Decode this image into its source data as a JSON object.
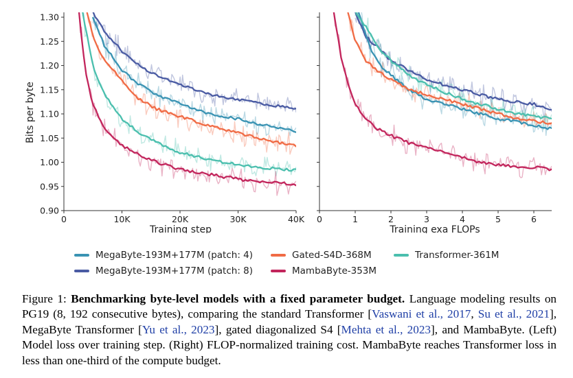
{
  "figure": {
    "ylabel": "Bits per byte",
    "yticks": [
      "0.90",
      "0.95",
      "1.00",
      "1.05",
      "1.10",
      "1.15",
      "1.20",
      "1.25",
      "1.30"
    ],
    "left_xlabel": "Training step",
    "left_xticks": [
      "0",
      "10K",
      "20K",
      "30K",
      "40K"
    ],
    "right_xlabel": "Training exa FLOPs",
    "right_xticks": [
      "0",
      "1",
      "2",
      "3",
      "4",
      "5",
      "6"
    ],
    "colors": {
      "megabyte_p4": "#3a93b3",
      "megabyte_p8": "#4a5ba3",
      "gated_s4d": "#f06b45",
      "transformer": "#4bbfae",
      "mambabyte": "#c2255c"
    },
    "legend": [
      {
        "key": "megabyte_p4",
        "label": "MegaByte-193M+177M (patch: 4)"
      },
      {
        "key": "gated_s4d",
        "label": "Gated-S4D-368M"
      },
      {
        "key": "transformer",
        "label": "Transformer-361M"
      },
      {
        "key": "megabyte_p8",
        "label": "MegaByte-193M+177M (patch: 8)"
      },
      {
        "key": "mambabyte",
        "label": "MambaByte-353M"
      }
    ]
  },
  "chart_data": [
    {
      "type": "line",
      "xlabel": "Training step",
      "ylabel": "Bits per byte",
      "xlim": [
        0,
        40000
      ],
      "ylim": [
        0.9,
        1.31
      ],
      "series": [
        {
          "key": "megabyte_p8",
          "name": "MegaByte-193M+177M (patch: 8)",
          "x": [
            5000,
            7000,
            10000,
            13000,
            16000,
            20000,
            25000,
            30000,
            35000,
            40000
          ],
          "y": [
            1.31,
            1.27,
            1.23,
            1.2,
            1.18,
            1.16,
            1.14,
            1.13,
            1.12,
            1.11
          ]
        },
        {
          "key": "megabyte_p4",
          "name": "MegaByte-193M+177M (patch: 4)",
          "x": [
            5000,
            7000,
            10000,
            13000,
            16000,
            20000,
            25000,
            30000,
            35000,
            40000
          ],
          "y": [
            1.3,
            1.24,
            1.19,
            1.16,
            1.14,
            1.12,
            1.1,
            1.09,
            1.075,
            1.065
          ]
        },
        {
          "key": "gated_s4d",
          "name": "Gated-S4D-368M",
          "x": [
            4000,
            5000,
            7000,
            10000,
            13000,
            16000,
            20000,
            25000,
            30000,
            35000,
            40000
          ],
          "y": [
            1.31,
            1.26,
            1.21,
            1.17,
            1.13,
            1.11,
            1.095,
            1.075,
            1.06,
            1.045,
            1.035
          ]
        },
        {
          "key": "transformer",
          "name": "Transformer-361M",
          "x": [
            3200,
            4000,
            5000,
            7000,
            10000,
            13000,
            16000,
            20000,
            25000,
            30000,
            35000,
            40000
          ],
          "y": [
            1.31,
            1.26,
            1.2,
            1.14,
            1.09,
            1.06,
            1.04,
            1.02,
            1.005,
            0.995,
            0.988,
            0.983
          ]
        },
        {
          "key": "mambabyte",
          "name": "MambaByte-353M",
          "x": [
            2600,
            3200,
            4000,
            5000,
            7000,
            10000,
            13000,
            16000,
            20000,
            25000,
            30000,
            35000,
            40000
          ],
          "y": [
            1.31,
            1.24,
            1.17,
            1.12,
            1.07,
            1.035,
            1.015,
            1.0,
            0.985,
            0.975,
            0.965,
            0.958,
            0.955
          ]
        }
      ]
    },
    {
      "type": "line",
      "xlabel": "Training exa FLOPs",
      "xlim": [
        0,
        6.5
      ],
      "ylim": [
        0.9,
        1.31
      ],
      "series": [
        {
          "key": "megabyte_p8",
          "name": "MegaByte-193M+177M (patch: 8)",
          "x": [
            1.0,
            1.3,
            1.6,
            2.0,
            2.5,
            3.0,
            3.5,
            4.0,
            4.5,
            5.0,
            5.5,
            6.0,
            6.5
          ],
          "y": [
            1.31,
            1.26,
            1.24,
            1.21,
            1.19,
            1.17,
            1.16,
            1.15,
            1.14,
            1.13,
            1.125,
            1.12,
            1.11
          ]
        },
        {
          "key": "megabyte_p4",
          "name": "MegaByte-193M+177M (patch: 4)",
          "x": [
            1.1,
            1.4,
            1.7,
            2.0,
            2.5,
            3.0,
            3.5,
            4.0,
            4.5,
            5.0,
            5.5,
            6.0,
            6.5
          ],
          "y": [
            1.31,
            1.24,
            1.2,
            1.18,
            1.15,
            1.13,
            1.12,
            1.11,
            1.1,
            1.09,
            1.085,
            1.075,
            1.07
          ]
        },
        {
          "key": "gated_s4d",
          "name": "Gated-S4D-368M",
          "x": [
            0.8,
            1.0,
            1.3,
            1.6,
            2.0,
            2.5,
            3.0,
            3.5,
            4.0,
            4.5,
            5.0,
            5.5,
            6.0,
            6.5
          ],
          "y": [
            1.31,
            1.25,
            1.21,
            1.19,
            1.17,
            1.15,
            1.14,
            1.13,
            1.12,
            1.11,
            1.1,
            1.09,
            1.085,
            1.08
          ]
        },
        {
          "key": "transformer",
          "name": "Transformer-361M",
          "x": [
            1.0,
            1.3,
            1.6,
            2.0,
            2.5,
            3.0,
            3.5,
            4.0,
            4.5,
            5.0,
            5.5,
            6.0,
            6.5
          ],
          "y": [
            1.31,
            1.28,
            1.24,
            1.21,
            1.18,
            1.16,
            1.145,
            1.13,
            1.12,
            1.11,
            1.1,
            1.095,
            1.09
          ]
        },
        {
          "key": "mambabyte",
          "name": "MambaByte-353M",
          "x": [
            0.4,
            0.6,
            0.8,
            1.0,
            1.3,
            1.6,
            2.0,
            2.5,
            3.0,
            3.5,
            4.0,
            4.5,
            5.0,
            5.5,
            6.0,
            6.5
          ],
          "y": [
            1.31,
            1.22,
            1.16,
            1.12,
            1.09,
            1.07,
            1.055,
            1.04,
            1.03,
            1.02,
            1.01,
            1.0,
            0.995,
            0.99,
            0.99,
            0.985
          ]
        }
      ]
    }
  ],
  "caption": {
    "label": "Figure 1:",
    "bold": "Benchmarking byte-level models with a fixed parameter budget.",
    "t1": "Language modeling results on PG19 (8, 192 consecutive bytes), comparing the standard Transformer [",
    "c1": "Vaswani et al., 2017",
    "t2": ", ",
    "c2": "Su et al., 2021",
    "t3": "], MegaByte Transformer [",
    "c3": "Yu et al., 2023",
    "t4": "], gated diagonalized S4 [",
    "c4": "Mehta et al., 2023",
    "t5": "], and MambaByte. (Left) Model loss over training step. (Right) FLOP-normalized training cost. MambaByte reaches Transformer loss in less than one-third of the compute budget."
  }
}
